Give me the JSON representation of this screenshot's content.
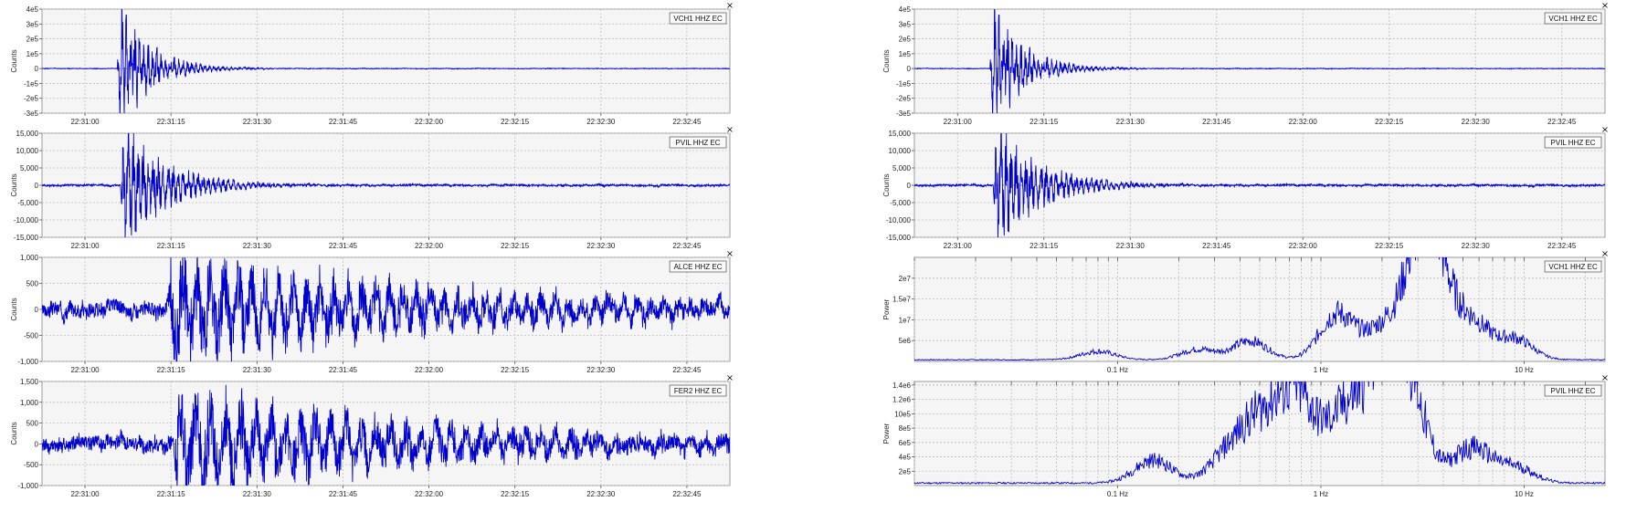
{
  "colors": {
    "trace": "#0000cc",
    "background": "#f5f5f5",
    "grid": "#bdbdbd"
  },
  "close_icon": "×",
  "chart_data": [
    {
      "type": "line",
      "column": "left",
      "station": "VCH1 HHZ EC",
      "ylabel": "Counts",
      "yticks": [
        "4e5",
        "3e5",
        "2e5",
        "1e5",
        "0",
        "-1e5",
        "-2e5",
        "-3e5"
      ],
      "ytick_values": [
        400000,
        300000,
        200000,
        100000,
        0,
        -100000,
        -200000,
        -300000
      ],
      "ylim": [
        -300000,
        400000
      ],
      "xticks": [
        "22:31:00",
        "22:31:15",
        "22:31:30",
        "22:31:45",
        "22:32:00",
        "22:32:15",
        "22:32:30",
        "22:32:45"
      ],
      "xlim": [
        0,
        110
      ],
      "signal": {
        "onset": 12,
        "amplitude": 400000,
        "decay": 5,
        "noise": 2000,
        "period": 0.7,
        "seed": 1
      }
    },
    {
      "type": "line",
      "column": "left",
      "station": "PVIL HHZ EC",
      "ylabel": "Counts",
      "yticks": [
        "15,000",
        "10,000",
        "5,000",
        "0",
        "-5,000",
        "-10,000",
        "-15,000"
      ],
      "ytick_values": [
        15000,
        10000,
        5000,
        0,
        -5000,
        -10000,
        -15000
      ],
      "ylim": [
        -15000,
        15000
      ],
      "xticks": [
        "22:31:00",
        "22:31:15",
        "22:31:30",
        "22:31:45",
        "22:32:00",
        "22:32:15",
        "22:32:30",
        "22:32:45"
      ],
      "xlim": [
        0,
        110
      ],
      "signal": {
        "onset": 12.5,
        "amplitude": 17000,
        "decay": 7,
        "noise": 250,
        "period": 0.8,
        "seed": 2
      }
    },
    {
      "type": "line",
      "column": "left",
      "station": "ALCE HHZ EC",
      "ylabel": "Counts",
      "yticks": [
        "1,000",
        "500",
        "0",
        "-500",
        "-1,000"
      ],
      "ytick_values": [
        1000,
        500,
        0,
        -500,
        -1000
      ],
      "ylim": [
        -1000,
        1000
      ],
      "xticks": [
        "22:31:00",
        "22:31:15",
        "22:31:30",
        "22:31:45",
        "22:32:00",
        "22:32:15",
        "22:32:30",
        "22:32:45"
      ],
      "xlim": [
        0,
        110
      ],
      "signal": {
        "onset": 20,
        "amplitude": 1000,
        "decay": 45,
        "noise": 130,
        "period": 2.2,
        "seed": 3
      }
    },
    {
      "type": "line",
      "column": "left",
      "station": "FER2 HHZ EC",
      "ylabel": "Counts",
      "yticks": [
        "1,500",
        "1,000",
        "500",
        "0",
        "-500",
        "-1,000"
      ],
      "ytick_values": [
        1500,
        1000,
        500,
        0,
        -500,
        -1000
      ],
      "ylim": [
        -1000,
        1500
      ],
      "xticks": [
        "22:31:00",
        "22:31:15",
        "22:31:30",
        "22:31:45",
        "22:32:00",
        "22:32:15",
        "22:32:30",
        "22:32:45"
      ],
      "xlim": [
        0,
        110
      ],
      "signal": {
        "onset": 21,
        "amplitude": 1300,
        "decay": 40,
        "noise": 160,
        "period": 2.4,
        "seed": 4
      }
    },
    {
      "type": "line",
      "column": "right",
      "station": "VCH1 HHZ EC",
      "ylabel": "Counts",
      "yticks": [
        "4e5",
        "3e5",
        "2e5",
        "1e5",
        "0",
        "-1e5",
        "-2e5",
        "-3e5"
      ],
      "ytick_values": [
        400000,
        300000,
        200000,
        100000,
        0,
        -100000,
        -200000,
        -300000
      ],
      "ylim": [
        -300000,
        400000
      ],
      "xticks": [
        "22:31:00",
        "22:31:15",
        "22:31:30",
        "22:31:45",
        "22:32:00",
        "22:32:15",
        "22:32:30",
        "22:32:45"
      ],
      "xlim": [
        0,
        110
      ],
      "signal": {
        "onset": 12,
        "amplitude": 400000,
        "decay": 5,
        "noise": 2000,
        "period": 0.7,
        "seed": 1
      }
    },
    {
      "type": "line",
      "column": "right",
      "station": "PVIL HHZ EC",
      "ylabel": "Counts",
      "yticks": [
        "15,000",
        "10,000",
        "5,000",
        "0",
        "-5,000",
        "-10,000",
        "-15,000"
      ],
      "ytick_values": [
        15000,
        10000,
        5000,
        0,
        -5000,
        -10000,
        -15000
      ],
      "ylim": [
        -15000,
        15000
      ],
      "xticks": [
        "22:31:00",
        "22:31:15",
        "22:31:30",
        "22:31:45",
        "22:32:00",
        "22:32:15",
        "22:32:30",
        "22:32:45"
      ],
      "xlim": [
        0,
        110
      ],
      "signal": {
        "onset": 12.5,
        "amplitude": 17000,
        "decay": 7,
        "noise": 250,
        "period": 0.8,
        "seed": 2
      }
    },
    {
      "type": "line",
      "column": "right",
      "station": "VCH1 HHZ EC",
      "ylabel": "Power",
      "x_scale": "log",
      "yticks": [
        "2e7",
        "1.5e7",
        "1e7",
        "5e6"
      ],
      "ytick_values": [
        20000000,
        15000000,
        10000000,
        5000000
      ],
      "ylim": [
        0,
        25000000
      ],
      "xticks": [
        "0.1 Hz",
        "1 Hz",
        "10 Hz"
      ],
      "xtick_values": [
        0.1,
        1,
        10
      ],
      "xlim": [
        0.01,
        25
      ],
      "spectrum": {
        "peaks": [
          [
            0.08,
            2000000
          ],
          [
            0.25,
            2500000
          ],
          [
            0.45,
            4500000
          ],
          [
            1.2,
            11000000
          ],
          [
            2.0,
            7000000
          ],
          [
            3.0,
            15000000
          ],
          [
            3.5,
            23000000
          ],
          [
            5.5,
            9000000
          ],
          [
            9.0,
            5000000
          ]
        ],
        "width": 0.12,
        "noise": 0.28,
        "floor": 400000,
        "seed": 7
      }
    },
    {
      "type": "line",
      "column": "right",
      "station": "PVIL HHZ EC",
      "ylabel": "Power",
      "x_scale": "log",
      "yticks": [
        "1.4e6",
        "1.2e6",
        "10e5",
        "8e5",
        "6e5",
        "4e5",
        "2e5"
      ],
      "ytick_values": [
        1400000,
        1200000,
        1000000,
        800000,
        600000,
        400000,
        200000
      ],
      "ylim": [
        0,
        1450000
      ],
      "xticks": [
        "0.1 Hz",
        "1 Hz",
        "10 Hz"
      ],
      "xtick_values": [
        0.1,
        1,
        10
      ],
      "xlim": [
        0.01,
        25
      ],
      "spectrum": {
        "peaks": [
          [
            0.15,
            320000
          ],
          [
            0.35,
            380000
          ],
          [
            0.5,
            750000
          ],
          [
            0.75,
            1200000
          ],
          [
            1.3,
            900000
          ],
          [
            2.0,
            1300000
          ],
          [
            2.6,
            1350000
          ],
          [
            5.5,
            480000
          ],
          [
            9.0,
            220000
          ]
        ],
        "width": 0.13,
        "noise": 0.32,
        "floor": 35000,
        "seed": 11
      }
    }
  ]
}
